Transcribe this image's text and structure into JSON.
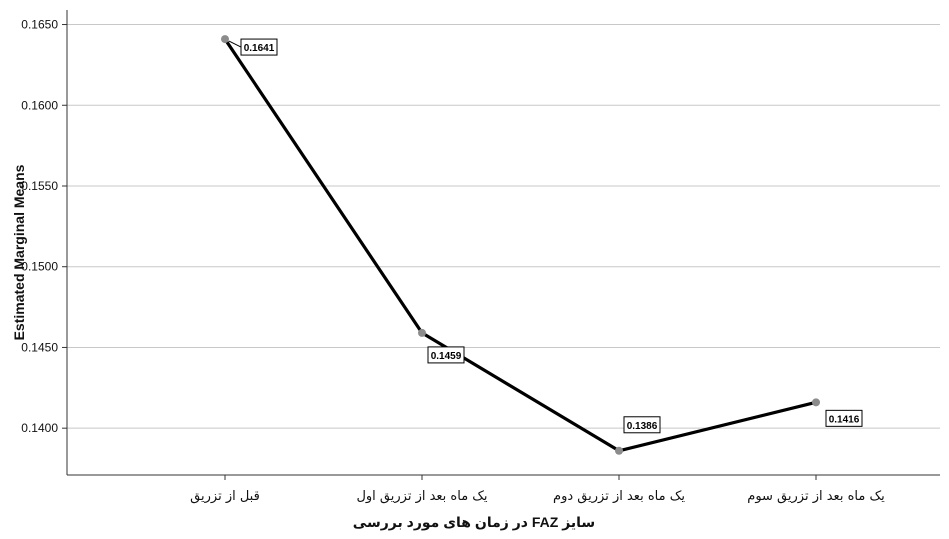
{
  "chart_data": {
    "type": "line",
    "title": "",
    "xlabel": "سایز FAZ در زمان های مورد بررسی",
    "ylabel": "Estimated Marginal Means",
    "categories": [
      "قبل از تزریق",
      "یک ماه بعد از تزریق اول",
      "یک ماه بعد از تزریق دوم",
      "یک ماه بعد از تزریق سوم"
    ],
    "series": [
      {
        "values": [
          0.1641,
          0.1459,
          0.1386,
          0.1416
        ]
      }
    ],
    "data_labels": [
      "0.1641",
      "0.1459",
      "0.1386",
      "0.1416"
    ],
    "y_ticks": [
      0.14,
      0.145,
      0.15,
      0.155,
      0.16,
      0.165
    ],
    "y_tick_labels": [
      "0.1400",
      "0.1450",
      "0.1500",
      "0.1550",
      "0.1600",
      "0.1650"
    ],
    "ylim": [
      0.1371,
      0.1659
    ],
    "grid": true,
    "legend": "none",
    "colors": {
      "line": "#000000",
      "marker": "#8c8c8c",
      "grid": "#c8c8c8"
    }
  }
}
